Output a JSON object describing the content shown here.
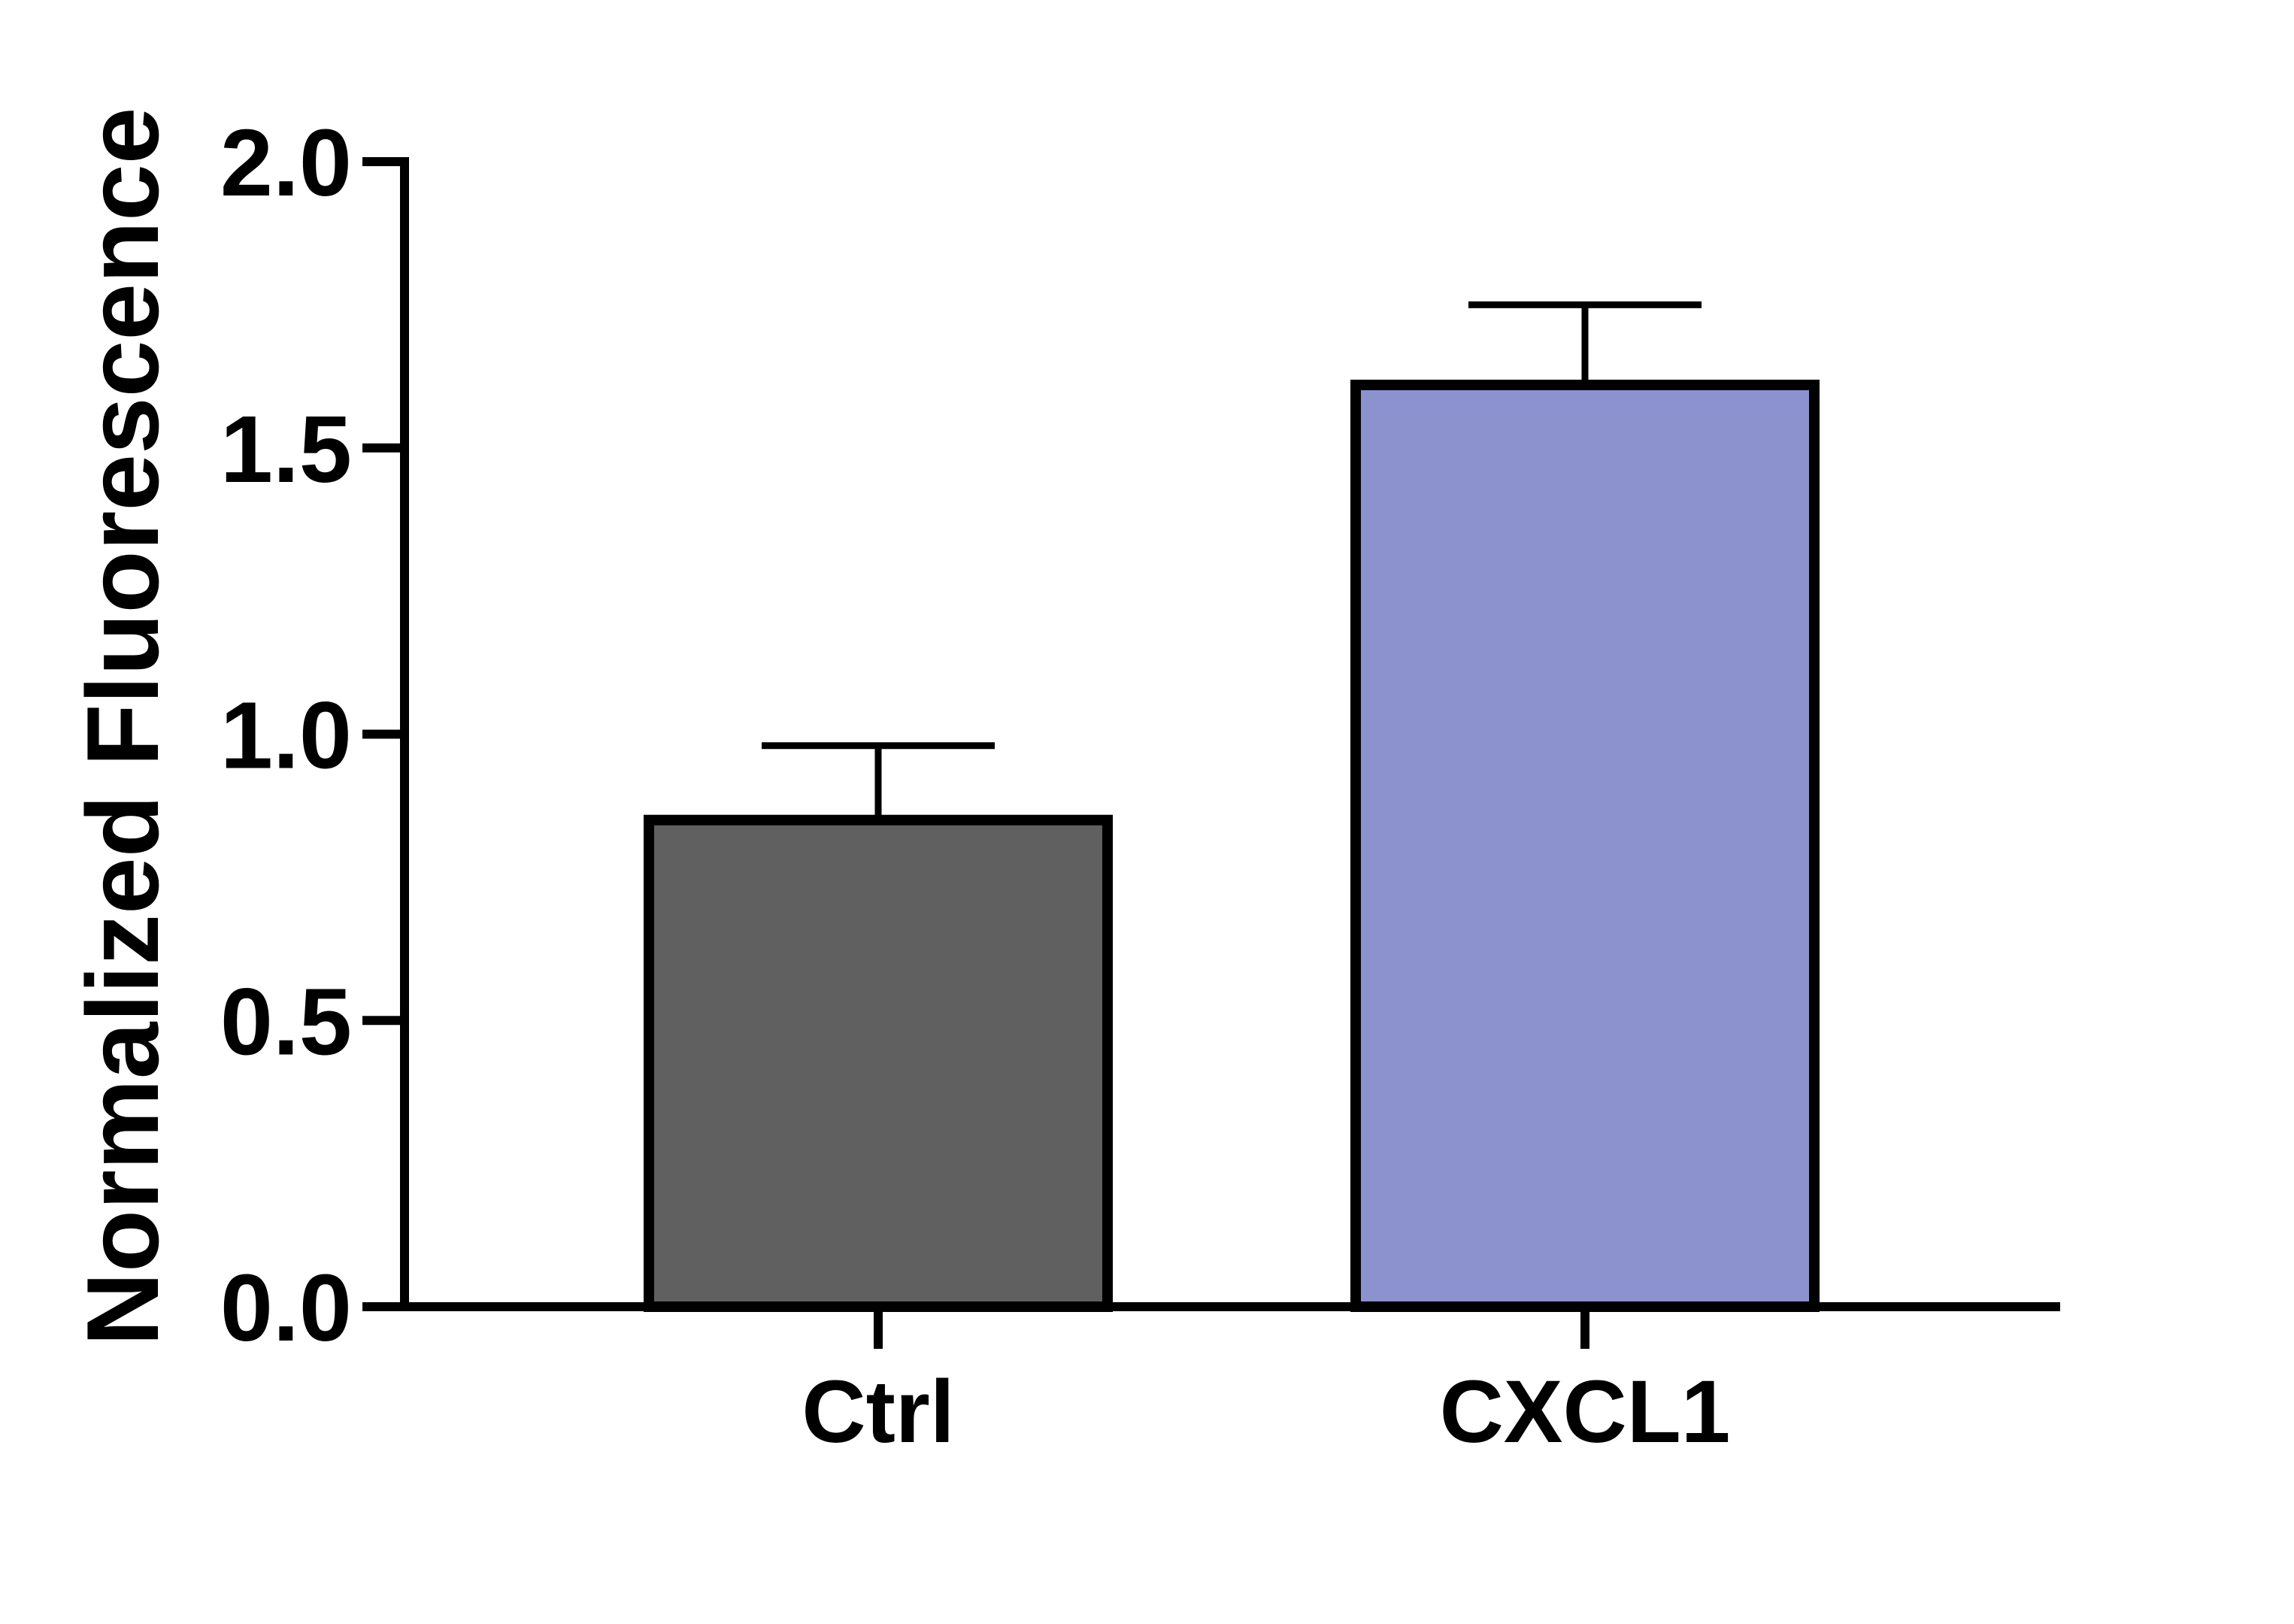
{
  "chart_data": {
    "type": "bar",
    "categories": [
      "Ctrl",
      "CXCL1"
    ],
    "values": [
      0.85,
      1.61
    ],
    "errors": [
      0.13,
      0.14
    ],
    "bar_colors": [
      "#606060",
      "#8b92cd"
    ],
    "title": "",
    "xlabel": "",
    "ylabel": "Normalized Fluorescence",
    "ylim": [
      0,
      2.0
    ],
    "yticks": [
      0.0,
      0.5,
      1.0,
      1.5,
      2.0
    ],
    "ytick_labels": [
      "0.0",
      "0.5",
      "1.0",
      "1.5",
      "2.0"
    ],
    "grid": false,
    "legend": "none"
  }
}
